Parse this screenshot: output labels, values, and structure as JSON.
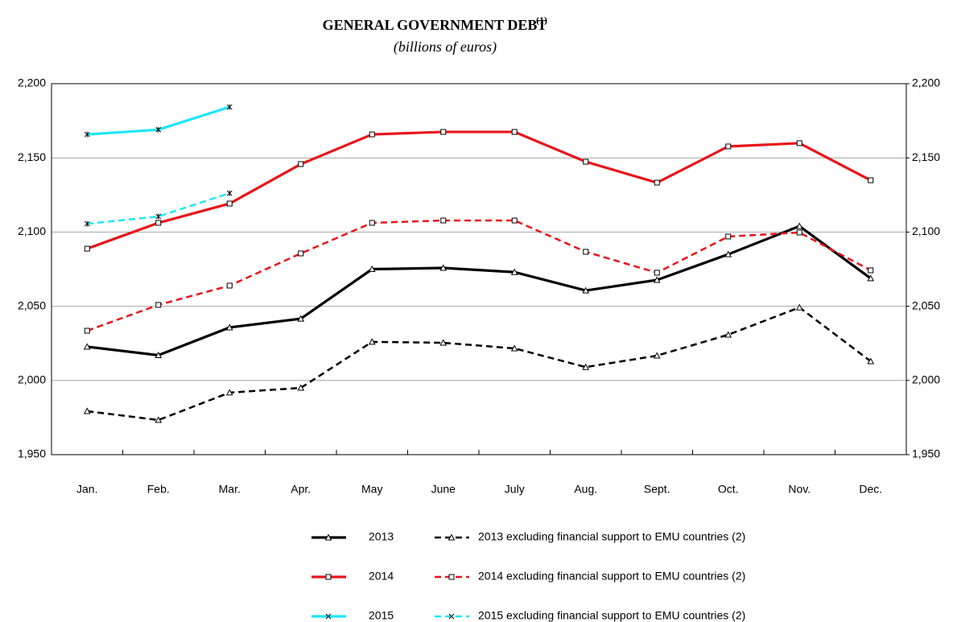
{
  "chart_data": {
    "type": "line",
    "title": "GENERAL GOVERNMENT DEBT",
    "title_superscript": "(1)",
    "subtitle": "(billions of euros)",
    "categories": [
      "Jan.",
      "Feb.",
      "Mar.",
      "Apr.",
      "May",
      "June",
      "July",
      "Aug.",
      "Sept.",
      "Oct.",
      "Nov.",
      "Dec."
    ],
    "series": [
      {
        "name": "2013",
        "color": "#000000",
        "dashed": false,
        "marker": "triangle",
        "values": [
          2022.7,
          2017,
          2035.7,
          2041.6,
          2075,
          2075.8,
          2073,
          2060.6,
          2067.7,
          2085,
          2104,
          2068.8
        ]
      },
      {
        "name": "2013 excluding financial support to EMU countries (2)",
        "color": "#000000",
        "dashed": true,
        "marker": "triangle",
        "values": [
          1979.3,
          1973.3,
          1991.8,
          1995,
          2026,
          2025.4,
          2021.6,
          2009,
          2016.7,
          2030.8,
          2049.2,
          2012.9
        ]
      },
      {
        "name": "2014",
        "color": "#e8141a",
        "dashed": false,
        "marker": "square",
        "values": [
          2088.8,
          2106.2,
          2119.2,
          2145.8,
          2165.8,
          2167.5,
          2167.5,
          2147.4,
          2133.3,
          2157.7,
          2159.9,
          2134.9
        ]
      },
      {
        "name": "2014 excluding financial support to EMU countries (2)",
        "color": "#e8141a",
        "dashed": true,
        "marker": "square",
        "values": [
          2033.5,
          2050.9,
          2063.9,
          2085.6,
          2106.2,
          2107.8,
          2107.8,
          2086.7,
          2072.6,
          2097,
          2099.7,
          2074.2
        ]
      },
      {
        "name": "2015",
        "color": "#1ee6f5",
        "dashed": false,
        "marker": "asterisk",
        "values": [
          2165.8,
          2169,
          2184.3,
          null,
          null,
          null,
          null,
          null,
          null,
          null,
          null,
          null
        ]
      },
      {
        "name": "2015 excluding financial support to EMU countries (2)",
        "color": "#1ee6f5",
        "dashed": true,
        "marker": "asterisk",
        "values": [
          2105.6,
          2110.5,
          2126.2,
          null,
          null,
          null,
          null,
          null,
          null,
          null,
          null,
          null
        ]
      }
    ],
    "ylim": [
      1950,
      2200
    ],
    "yticks": [
      {
        "value": 1950,
        "label": "1,950"
      },
      {
        "value": 2000,
        "label": "2,000"
      },
      {
        "value": 2050,
        "label": "2,050"
      },
      {
        "value": 2100,
        "label": "2,100"
      },
      {
        "value": 2150,
        "label": "2,150"
      },
      {
        "value": 2200,
        "label": "2,200"
      }
    ],
    "y2lim": [
      1950,
      2200
    ],
    "y2ticks": [
      {
        "value": 1950,
        "label": "1,950"
      },
      {
        "value": 2000,
        "label": "2,000"
      },
      {
        "value": 2050,
        "label": "2,050"
      },
      {
        "value": 2100,
        "label": "2,100"
      },
      {
        "value": 2150,
        "label": "2,150"
      },
      {
        "value": 2200,
        "label": "2,200"
      }
    ],
    "grid": true
  }
}
